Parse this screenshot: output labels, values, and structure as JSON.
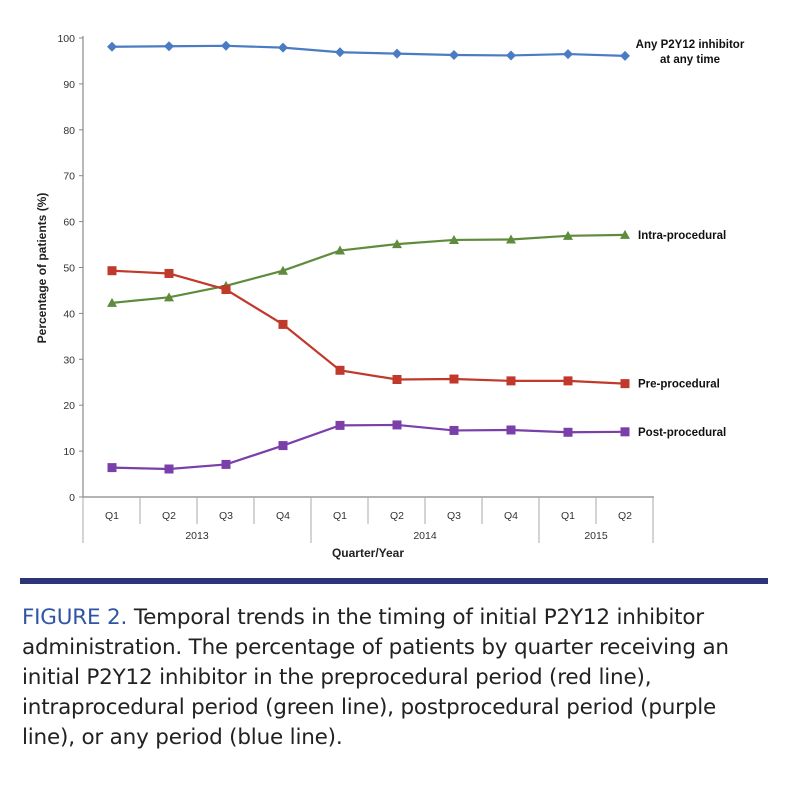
{
  "chart_data": {
    "type": "line",
    "xlabel": "Quarter/Year",
    "ylabel": "Percentage of patients (%)",
    "ylim": [
      0,
      100
    ],
    "yticks": [
      0,
      10,
      20,
      30,
      40,
      50,
      60,
      70,
      80,
      90,
      100
    ],
    "categories": [
      "Q1",
      "Q2",
      "Q3",
      "Q4",
      "Q1",
      "Q2",
      "Q3",
      "Q4",
      "Q1",
      "Q2"
    ],
    "year_groups": [
      {
        "label": "2013",
        "span": 4
      },
      {
        "label": "2014",
        "span": 4
      },
      {
        "label": "2015",
        "span": 2
      }
    ],
    "grid": false,
    "legend": "inline labels at right end of each line",
    "series": [
      {
        "name": "Any P2Y12 inhibitor at any time",
        "name_lines": [
          "Any P2Y12 inhibitor",
          "at any time"
        ],
        "color": "#4a7cc4",
        "marker": "diamond",
        "values": [
          98.1,
          98.2,
          98.3,
          97.9,
          96.9,
          96.6,
          96.3,
          96.2,
          96.5,
          96.1
        ]
      },
      {
        "name": "Intra-procedural",
        "name_lines": [
          "Intra-procedural"
        ],
        "color": "#5e8c3c",
        "marker": "triangle",
        "values": [
          42.3,
          43.5,
          46.0,
          49.3,
          53.7,
          55.1,
          56.0,
          56.1,
          56.9,
          57.1
        ]
      },
      {
        "name": "Pre-procedural",
        "name_lines": [
          "Pre-procedural"
        ],
        "color": "#c0392b",
        "marker": "square",
        "values": [
          49.3,
          48.7,
          45.2,
          37.6,
          27.6,
          25.6,
          25.7,
          25.3,
          25.3,
          24.7
        ]
      },
      {
        "name": "Post-procedural",
        "name_lines": [
          "Post-procedural"
        ],
        "color": "#7a3fa8",
        "marker": "square",
        "values": [
          6.4,
          6.1,
          7.1,
          11.2,
          15.6,
          15.7,
          14.5,
          14.6,
          14.1,
          14.2
        ]
      }
    ]
  },
  "caption": {
    "label": "FIGURE 2.",
    "text": " Temporal trends in the timing of initial P2Y12 inhibitor administration. The percentage of patients by quarter receiving an initial P2Y12 inhibitor in the preprocedural period (red line), intraprocedural period (green line), postprocedural period (purple line), or any period (blue line).",
    "label_color": "#2f55a4",
    "rule_color": "#2b3577"
  }
}
